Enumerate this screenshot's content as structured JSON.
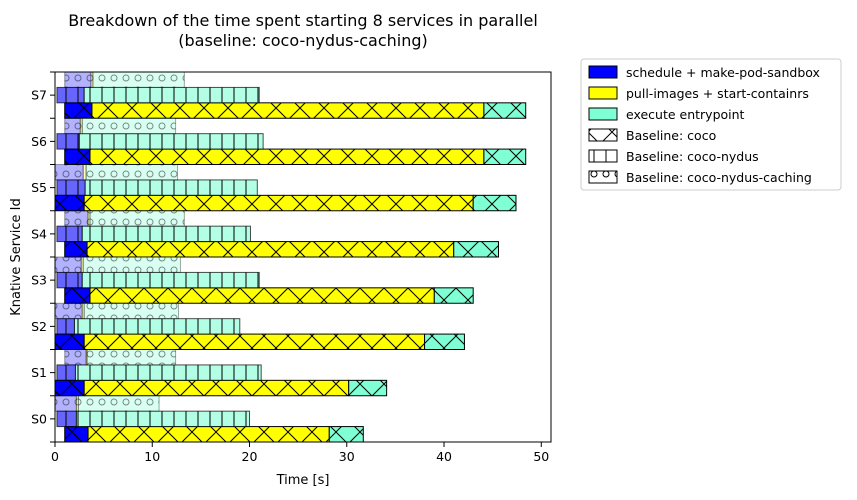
{
  "chart_data": {
    "type": "bar",
    "orientation": "horizontal-stacked",
    "title_line1": "Breakdown of the time spent starting 8 services in parallel",
    "title_line2": "(baseline: coco-nydus-caching)",
    "xlabel": "Time [s]",
    "ylabel": "Knative Service Id",
    "xlim": [
      0,
      51
    ],
    "xticks": [
      0,
      10,
      20,
      30,
      40,
      50
    ],
    "categories": [
      "S0",
      "S1",
      "S2",
      "S3",
      "S4",
      "S5",
      "S6",
      "S7"
    ],
    "stages": [
      {
        "name": "schedule + make-pod-sandbox",
        "color": "#0000ff"
      },
      {
        "name": "pull-images + start-containrs",
        "color": "#ffff00"
      },
      {
        "name": "execute entrypoint",
        "color": "#7fffd4"
      }
    ],
    "baselines": [
      {
        "name": "Baseline: coco",
        "hatch": "x"
      },
      {
        "name": "Baseline: coco-nydus",
        "hatch": "|"
      },
      {
        "name": "Baseline: coco-nydus-caching",
        "hatch": "o"
      }
    ],
    "series": [
      {
        "name": "Baseline: coco",
        "data": [
          [
            1.0,
            3.4,
            28.2,
            31.7
          ],
          [
            0.0,
            3.0,
            30.2,
            34.1
          ],
          [
            0.0,
            3.0,
            38.0,
            42.1
          ],
          [
            1.0,
            3.6,
            39.0,
            43.0
          ],
          [
            1.0,
            3.3,
            41.0,
            45.6
          ],
          [
            0.0,
            3.0,
            43.0,
            47.4
          ],
          [
            1.0,
            3.6,
            44.1,
            48.4
          ],
          [
            1.0,
            3.8,
            44.1,
            48.4
          ]
        ]
      },
      {
        "name": "Baseline: coco-nydus",
        "data": [
          [
            0.2,
            2.2,
            2.2,
            20.0
          ],
          [
            0.2,
            2.1,
            2.1,
            21.2
          ],
          [
            0.2,
            2.0,
            2.0,
            19.0
          ],
          [
            0.2,
            2.8,
            2.8,
            21.0
          ],
          [
            0.2,
            2.8,
            2.8,
            20.1
          ],
          [
            0.2,
            3.1,
            3.1,
            20.8
          ],
          [
            0.2,
            2.5,
            2.5,
            21.4
          ],
          [
            0.2,
            3.0,
            3.0,
            21.0
          ]
        ]
      },
      {
        "name": "Baseline: coco-nydus-caching",
        "data": [
          [
            0.0,
            2.2,
            2.4,
            10.7
          ],
          [
            1.0,
            3.2,
            3.3,
            12.4
          ],
          [
            0.0,
            2.8,
            3.0,
            12.7
          ],
          [
            0.0,
            2.7,
            2.9,
            12.9
          ],
          [
            1.0,
            3.4,
            3.6,
            13.3
          ],
          [
            0.0,
            2.9,
            3.2,
            12.6
          ],
          [
            1.0,
            2.6,
            2.8,
            12.4
          ],
          [
            1.0,
            3.7,
            3.9,
            13.3
          ]
        ]
      }
    ],
    "legend_position": "outside-right"
  }
}
